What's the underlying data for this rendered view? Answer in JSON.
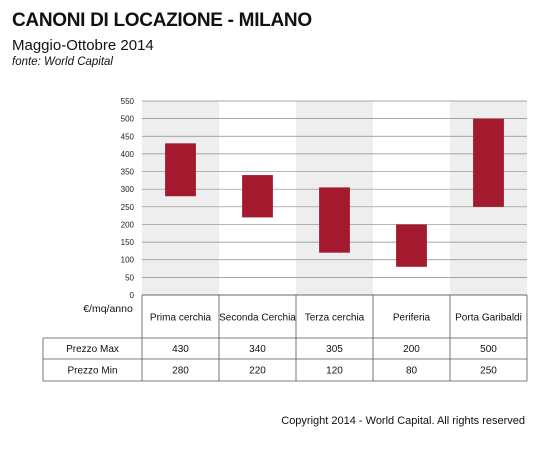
{
  "header": {
    "title": "CANONI DI LOCAZIONE - MILANO",
    "subtitle": "Maggio-Ottobre 2014",
    "source": "fonte: World Capital"
  },
  "footer": {
    "copyright": "Copyright 2014 - World Capital. All rights reserved"
  },
  "chart_data": {
    "type": "bar",
    "subtype": "floating-range",
    "categories": [
      "Prima cerchia",
      "Seconda Cerchia",
      "Terza cerchia",
      "Periferia",
      "Porta Garibaldi"
    ],
    "series": [
      {
        "name": "Prezzo Max",
        "values": [
          430,
          340,
          305,
          200,
          500
        ]
      },
      {
        "name": "Prezzo Min",
        "values": [
          280,
          220,
          120,
          80,
          250
        ]
      }
    ],
    "ylabel": "€/mq/anno",
    "ylim": [
      0,
      550
    ],
    "yticks": [
      0,
      50,
      100,
      150,
      200,
      250,
      300,
      350,
      400,
      450,
      500,
      550
    ],
    "grid": true,
    "bar_color": "#a31a2e",
    "band_color": "#eeeeee"
  }
}
